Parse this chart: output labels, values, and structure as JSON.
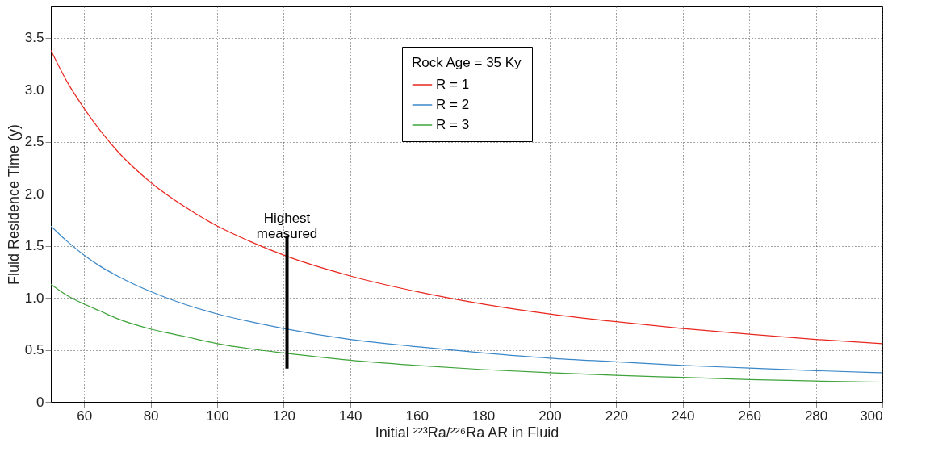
{
  "chart_data": {
    "type": "line",
    "xlabel": "Initial ²²³Ra/²²⁶Ra AR in Fluid",
    "ylabel": "Fluid Residence Time (y)",
    "legend_title": "Rock Age = 35 Ky",
    "x": [
      50,
      55,
      60,
      65,
      70,
      80,
      90,
      100,
      110,
      120,
      140,
      160,
      180,
      200,
      220,
      240,
      260,
      280,
      300
    ],
    "series": [
      {
        "name": "R = 1",
        "color": "#e8261e",
        "values": [
          3.38,
          3.07,
          2.82,
          2.6,
          2.41,
          2.11,
          1.88,
          1.69,
          1.54,
          1.41,
          1.21,
          1.06,
          0.94,
          0.845,
          0.77,
          0.705,
          0.65,
          0.6,
          0.56
        ]
      },
      {
        "name": "R = 2",
        "color": "#3a87c8",
        "values": [
          1.69,
          1.54,
          1.41,
          1.3,
          1.21,
          1.06,
          0.94,
          0.845,
          0.77,
          0.705,
          0.6,
          0.53,
          0.47,
          0.42,
          0.385,
          0.35,
          0.325,
          0.3,
          0.28
        ]
      },
      {
        "name": "R = 3",
        "color": "#3ea33a",
        "values": [
          1.13,
          1.02,
          0.94,
          0.87,
          0.8,
          0.7,
          0.63,
          0.56,
          0.51,
          0.47,
          0.4,
          0.35,
          0.31,
          0.28,
          0.255,
          0.235,
          0.215,
          0.2,
          0.19
        ]
      },
      {
        "type": "line",
        "color": "#000000",
        "x": [
          121,
          121
        ],
        "values": [
          0.32,
          1.6
        ]
      }
    ],
    "annotations": [
      {
        "text": "Highest measured",
        "x": 121,
        "y": 1.6
      }
    ],
    "xlim": [
      50,
      300
    ],
    "xticks": [
      60,
      80,
      100,
      120,
      140,
      160,
      180,
      200,
      220,
      240,
      260,
      280,
      300
    ],
    "ylim": [
      0,
      3.8
    ],
    "yticks": [
      0,
      0.5,
      {
        "value": 1,
        "label": "1.0"
      },
      1.5,
      {
        "value": 2,
        "label": "2.0"
      },
      2.5,
      {
        "value": 3,
        "label": "3.0"
      },
      3.5
    ],
    "grid": true,
    "legend": "top",
    "marker": "none",
    "line_style": "solid"
  }
}
